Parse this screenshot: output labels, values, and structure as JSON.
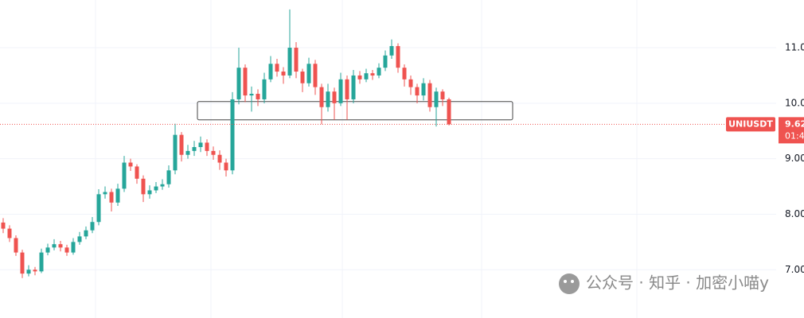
{
  "chart_data": {
    "type": "candlestick",
    "symbol": "UNIUSDT",
    "last_price": 9.62,
    "countdown": "01:4",
    "watermark": "公众号 · 知乎 · 加密小喵y",
    "up_color": "#26a69a",
    "down_color": "#ef5350",
    "ylim": [
      6.13,
      11.86
    ],
    "yticks": [
      {
        "value": 7,
        "label": "7.00"
      },
      {
        "value": 8,
        "label": "8.00"
      },
      {
        "value": 9,
        "label": "9.00"
      },
      {
        "value": 10,
        "label": "10.00"
      },
      {
        "value": 11,
        "label": "11.00"
      }
    ],
    "grid": true,
    "zone": {
      "x": [
        30.5,
        80
      ],
      "y": [
        9.7,
        10.03
      ]
    },
    "open": [
      7.85,
      7.74,
      7.57,
      7.31,
      6.93,
      7.0,
      6.97,
      7.31,
      7.4,
      7.46,
      7.4,
      7.31,
      7.5,
      7.6,
      7.71,
      7.86,
      8.36,
      8.4,
      8.21,
      8.46,
      8.93,
      8.86,
      8.64,
      8.36,
      8.43,
      8.5,
      8.54,
      8.79,
      9.43,
      9.07,
      9.14,
      9.21,
      9.29,
      9.14,
      9.07,
      8.93,
      8.79,
      10.07,
      10.64,
      10.14,
      10.17,
      10.07,
      10.43,
      10.71,
      10.57,
      10.5,
      11.0,
      10.57,
      10.36,
      10.71,
      10.29,
      9.93,
      10.21,
      10.0,
      10.43,
      10.07,
      10.5,
      10.43,
      10.54,
      10.5,
      10.64,
      10.86,
      11.03,
      10.64,
      10.43,
      10.29,
      10.14,
      10.36,
      9.93,
      10.21,
      10.07
    ],
    "high": [
      7.93,
      7.8,
      7.62,
      7.36,
      7.08,
      7.05,
      7.38,
      7.47,
      7.55,
      7.52,
      7.45,
      7.57,
      7.68,
      7.78,
      7.95,
      8.45,
      8.5,
      8.46,
      8.55,
      9.05,
      9.0,
      8.9,
      8.7,
      8.52,
      8.58,
      8.63,
      8.88,
      9.63,
      9.48,
      9.25,
      9.32,
      9.4,
      9.35,
      9.22,
      9.15,
      9.0,
      10.2,
      11.0,
      10.7,
      10.3,
      10.25,
      10.55,
      10.85,
      10.8,
      10.65,
      11.69,
      11.1,
      10.62,
      10.82,
      10.78,
      10.35,
      10.35,
      10.28,
      10.55,
      10.5,
      10.6,
      10.58,
      10.62,
      10.6,
      10.72,
      10.95,
      11.15,
      11.08,
      10.7,
      10.5,
      10.35,
      10.45,
      10.42,
      10.28,
      10.25,
      10.1
    ],
    "low": [
      7.66,
      7.5,
      7.25,
      6.85,
      6.88,
      6.9,
      6.94,
      7.26,
      7.35,
      7.33,
      7.25,
      7.27,
      7.45,
      7.55,
      7.66,
      7.8,
      8.28,
      8.05,
      8.15,
      8.4,
      8.78,
      8.55,
      8.22,
      8.28,
      8.38,
      8.44,
      8.48,
      8.72,
      8.95,
      9.0,
      9.05,
      9.12,
      9.05,
      8.98,
      8.8,
      8.68,
      8.72,
      9.98,
      10.02,
      9.85,
      9.95,
      10.0,
      10.38,
      10.48,
      10.35,
      10.45,
      10.45,
      10.2,
      10.3,
      10.15,
      9.62,
      9.85,
      9.7,
      9.95,
      9.7,
      10.0,
      10.35,
      10.38,
      10.42,
      10.45,
      10.58,
      10.8,
      10.55,
      10.3,
      10.15,
      10.0,
      10.05,
      9.85,
      9.58,
      9.95,
      9.6
    ],
    "close": [
      7.74,
      7.57,
      7.31,
      6.93,
      7.0,
      6.97,
      7.31,
      7.4,
      7.46,
      7.4,
      7.31,
      7.5,
      7.6,
      7.71,
      7.86,
      8.36,
      8.4,
      8.21,
      8.46,
      8.93,
      8.86,
      8.64,
      8.36,
      8.43,
      8.5,
      8.54,
      8.79,
      9.43,
      9.07,
      9.14,
      9.21,
      9.29,
      9.14,
      9.07,
      8.93,
      8.79,
      10.07,
      10.64,
      10.14,
      10.17,
      10.07,
      10.43,
      10.71,
      10.57,
      10.5,
      11.0,
      10.57,
      10.36,
      10.71,
      10.29,
      9.93,
      10.21,
      10.0,
      10.43,
      10.07,
      10.5,
      10.43,
      10.54,
      10.5,
      10.64,
      10.86,
      11.03,
      10.64,
      10.43,
      10.29,
      10.14,
      10.36,
      9.93,
      10.21,
      10.07,
      9.62
    ]
  }
}
